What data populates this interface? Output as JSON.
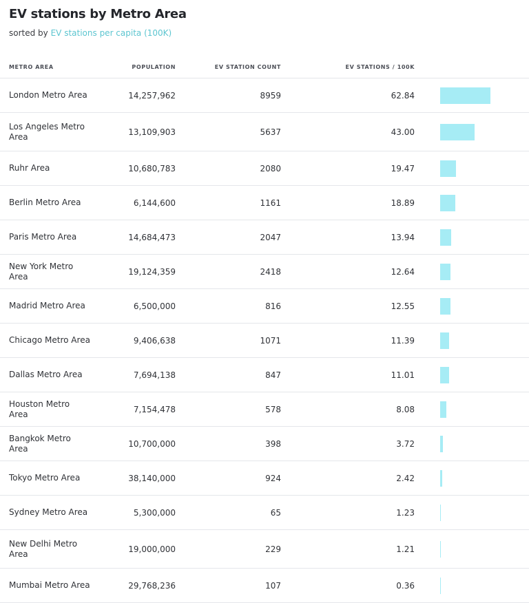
{
  "header": {
    "title": "EV stations by Metro Area",
    "subtitle_prefix": "sorted by",
    "sort_field": "EV stations per capita (100K)"
  },
  "colors": {
    "bar": "#a6ecf5",
    "accent": "#5cc5d0"
  },
  "table": {
    "columns": [
      "METRO AREA",
      "POPULATION",
      "EV STATION COUNT",
      "EV STATIONS / 100K"
    ],
    "rows": [
      {
        "name": "London Metro Area",
        "population": "14,257,962",
        "count": "8959",
        "rate": "62.84"
      },
      {
        "name": "Los Angeles Metro Area",
        "population": "13,109,903",
        "count": "5637",
        "rate": "43.00"
      },
      {
        "name": "Ruhr Area",
        "population": "10,680,783",
        "count": "2080",
        "rate": "19.47"
      },
      {
        "name": "Berlin Metro Area",
        "population": "6,144,600",
        "count": "1161",
        "rate": "18.89"
      },
      {
        "name": "Paris Metro Area",
        "population": "14,684,473",
        "count": "2047",
        "rate": "13.94"
      },
      {
        "name": "New York Metro Area",
        "population": "19,124,359",
        "count": "2418",
        "rate": "12.64"
      },
      {
        "name": "Madrid Metro Area",
        "population": "6,500,000",
        "count": "816",
        "rate": "12.55"
      },
      {
        "name": "Chicago Metro Area",
        "population": "9,406,638",
        "count": "1071",
        "rate": "11.39"
      },
      {
        "name": "Dallas Metro Area",
        "population": "7,694,138",
        "count": "847",
        "rate": "11.01"
      },
      {
        "name": "Houston Metro Area",
        "population": "7,154,478",
        "count": "578",
        "rate": "8.08"
      },
      {
        "name": "Bangkok Metro Area",
        "population": "10,700,000",
        "count": "398",
        "rate": "3.72"
      },
      {
        "name": "Tokyo Metro Area",
        "population": "38,140,000",
        "count": "924",
        "rate": "2.42"
      },
      {
        "name": "Sydney Metro Area",
        "population": "5,300,000",
        "count": "65",
        "rate": "1.23"
      },
      {
        "name": "New Delhi Metro Area",
        "population": "19,000,000",
        "count": "229",
        "rate": "1.21"
      },
      {
        "name": "Mumbai Metro Area",
        "population": "29,768,236",
        "count": "107",
        "rate": "0.36"
      }
    ]
  },
  "chart_data": {
    "type": "table",
    "title": "EV stations by Metro Area",
    "subtitle": "sorted by EV stations per capita (100K)",
    "columns": [
      "METRO AREA",
      "POPULATION",
      "EV STATION COUNT",
      "EV STATIONS / 100K"
    ],
    "categories": [
      "London Metro Area",
      "Los Angeles Metro Area",
      "Ruhr Area",
      "Berlin Metro Area",
      "Paris Metro Area",
      "New York Metro Area",
      "Madrid Metro Area",
      "Chicago Metro Area",
      "Dallas Metro Area",
      "Houston Metro Area",
      "Bangkok Metro Area",
      "Tokyo Metro Area",
      "Sydney Metro Area",
      "New Delhi Metro Area",
      "Mumbai Metro Area"
    ],
    "population": [
      14257962,
      13109903,
      10680783,
      6144600,
      14684473,
      19124359,
      6500000,
      9406638,
      7694138,
      7154478,
      10700000,
      38140000,
      5300000,
      19000000,
      29768236
    ],
    "ev_station_count": [
      8959,
      5637,
      2080,
      1161,
      2047,
      2418,
      816,
      1071,
      847,
      578,
      398,
      924,
      65,
      229,
      107
    ],
    "values": [
      62.84,
      43.0,
      19.47,
      18.89,
      13.94,
      12.64,
      12.55,
      11.39,
      11.01,
      8.08,
      3.72,
      2.42,
      1.23,
      1.21,
      0.36
    ],
    "bar_max": 62.84
  }
}
